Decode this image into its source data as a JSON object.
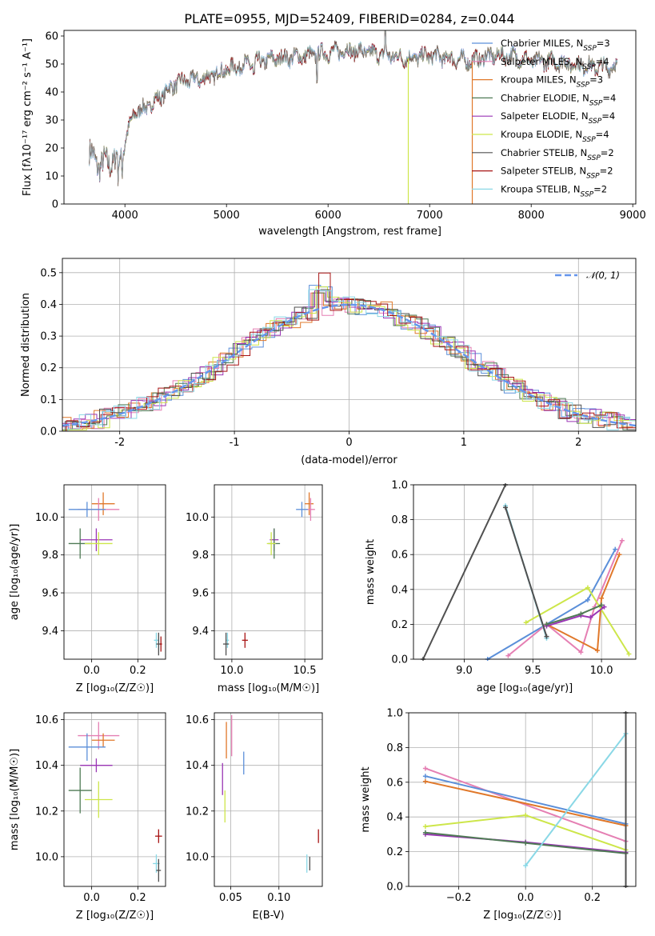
{
  "title": "PLATE=0955, MJD=52409, FIBERID=0284, z=0.044",
  "colors": {
    "chabrier_miles": "#5b8fd9",
    "salpeter_miles": "#e57fb3",
    "kroupa_miles": "#e0782a",
    "chabrier_elodie": "#4f7a55",
    "salpeter_elodie": "#9a35b5",
    "kroupa_elodie": "#cde64a",
    "chabrier_stelib": "#505050",
    "salpeter_stelib": "#a81414",
    "kroupa_stelib": "#8ad8e6",
    "data": "#7f7f7f",
    "normal": "#6495ed",
    "grid": "#b0b0b0"
  },
  "chart_data": [
    {
      "id": "spectrum",
      "type": "line",
      "xlabel": "wavelength [Angstrom, rest frame]",
      "ylabel": "Flux [fλ10⁻¹⁷ erg cm⁻² s⁻¹ A⁻¹]",
      "xlim": [
        3400,
        9030
      ],
      "ylim": [
        0,
        62
      ],
      "xticks": [
        4000,
        5000,
        6000,
        7000,
        8000,
        9000
      ],
      "yticks": [
        0,
        10,
        20,
        30,
        40,
        50,
        60
      ],
      "grid": false,
      "legend_position": "upper right",
      "continuum": [
        [
          3650,
          18
        ],
        [
          3750,
          14
        ],
        [
          3850,
          15
        ],
        [
          3950,
          17
        ],
        [
          4000,
          23
        ],
        [
          4100,
          33
        ],
        [
          4200,
          34
        ],
        [
          4300,
          37
        ],
        [
          4400,
          40
        ],
        [
          4500,
          43
        ],
        [
          4600,
          44
        ],
        [
          4800,
          45
        ],
        [
          5000,
          48
        ],
        [
          5200,
          50
        ],
        [
          5500,
          52
        ],
        [
          5800,
          53
        ],
        [
          6000,
          54
        ],
        [
          6200,
          55
        ],
        [
          6400,
          54
        ],
        [
          6600,
          53
        ],
        [
          6800,
          52
        ],
        [
          7000,
          53
        ],
        [
          7200,
          52
        ],
        [
          7400,
          51
        ],
        [
          7600,
          53
        ],
        [
          7800,
          53
        ],
        [
          8000,
          51
        ],
        [
          8200,
          51
        ],
        [
          8400,
          50
        ],
        [
          8600,
          49
        ],
        [
          8800,
          49
        ]
      ],
      "dropouts": [
        {
          "x": 6790,
          "color": "kroupa_elodie"
        },
        {
          "x": 7420,
          "color": "kroupa_miles"
        }
      ],
      "series": [
        {
          "name": "Chabrier MILES, N",
          "sub": "SSP",
          "suffix": "=3",
          "color": "chabrier_miles"
        },
        {
          "name": "Salpeter MILES, N",
          "sub": "SSP",
          "suffix": "=4",
          "color": "salpeter_miles"
        },
        {
          "name": "Kroupa MILES, N",
          "sub": "SSP",
          "suffix": "=3",
          "color": "kroupa_miles"
        },
        {
          "name": "Chabrier ELODIE, N",
          "sub": "SSP",
          "suffix": "=4",
          "color": "chabrier_elodie"
        },
        {
          "name": "Salpeter ELODIE, N",
          "sub": "SSP",
          "suffix": "=4",
          "color": "salpeter_elodie"
        },
        {
          "name": "Kroupa ELODIE, N",
          "sub": "SSP",
          "suffix": "=4",
          "color": "kroupa_elodie"
        },
        {
          "name": "Chabrier STELIB, N",
          "sub": "SSP",
          "suffix": "=2",
          "color": "chabrier_stelib"
        },
        {
          "name": "Salpeter STELIB, N",
          "sub": "SSP",
          "suffix": "=2",
          "color": "salpeter_stelib"
        },
        {
          "name": "Kroupa STELIB, N",
          "sub": "SSP",
          "suffix": "=2",
          "color": "kroupa_stelib"
        }
      ]
    },
    {
      "id": "residuals",
      "type": "histogram",
      "xlabel": "(data-model)/error",
      "ylabel": "Normed distribution",
      "xlim": [
        -2.5,
        2.5
      ],
      "ylim": [
        0,
        0.545
      ],
      "xticks": [
        -2,
        -1,
        0,
        1,
        2
      ],
      "yticks": [
        0.0,
        0.1,
        0.2,
        0.3,
        0.4,
        0.5
      ],
      "grid": true,
      "legend_position": "upper right",
      "legend_label": "𝒩(0, 1)",
      "bin_width": 0.1,
      "bin_edges_start": -2.5,
      "series_colors": [
        "chabrier_miles",
        "salpeter_miles",
        "kroupa_miles",
        "chabrier_elodie",
        "salpeter_elodie",
        "kroupa_elodie",
        "chabrier_stelib",
        "salpeter_stelib",
        "kroupa_stelib"
      ]
    },
    {
      "id": "age_vs_Z",
      "type": "errorbar",
      "xlabel": "Z [log₁₀(Z/Z☉)]",
      "ylabel": "age  [log₁₀(age/yr)]",
      "xlim": [
        -0.12,
        0.32
      ],
      "ylim": [
        9.25,
        10.17
      ],
      "xticks": [
        0.0,
        0.2
      ],
      "xtick_labels": [
        "0.0",
        "0.2"
      ],
      "yticks": [
        9.4,
        9.6,
        9.8,
        10.0
      ],
      "grid": true,
      "points": [
        {
          "x": 0.05,
          "y": 10.07,
          "xerr": 0.05,
          "yerr": 0.06,
          "color": "kroupa_miles"
        },
        {
          "x": 0.03,
          "y": 10.04,
          "xerr": 0.09,
          "yerr": 0.06,
          "color": "salpeter_miles"
        },
        {
          "x": -0.02,
          "y": 10.04,
          "xerr": 0.08,
          "yerr": 0.04,
          "color": "chabrier_miles"
        },
        {
          "x": 0.02,
          "y": 9.88,
          "xerr": 0.07,
          "yerr": 0.06,
          "color": "salpeter_elodie"
        },
        {
          "x": -0.05,
          "y": 9.86,
          "xerr": 0.05,
          "yerr": 0.08,
          "color": "chabrier_elodie"
        },
        {
          "x": 0.03,
          "y": 9.86,
          "xerr": 0.06,
          "yerr": 0.06,
          "color": "kroupa_elodie"
        },
        {
          "x": 0.28,
          "y": 9.35,
          "xerr": 0.01,
          "yerr": 0.04,
          "color": "kroupa_stelib"
        },
        {
          "x": 0.29,
          "y": 9.33,
          "xerr": 0.01,
          "yerr": 0.06,
          "color": "chabrier_stelib"
        },
        {
          "x": 0.3,
          "y": 9.33,
          "xerr": 0.005,
          "yerr": 0.04,
          "color": "salpeter_stelib"
        }
      ]
    },
    {
      "id": "age_vs_mass",
      "type": "errorbar",
      "xlabel": "mass [log₁₀(M/M☉)]",
      "ylabel": "",
      "xlim": [
        9.88,
        10.62
      ],
      "ylim": [
        9.25,
        10.17
      ],
      "xticks": [
        10.0,
        10.5
      ],
      "xtick_labels": [
        "10.0",
        "10.5"
      ],
      "yticks": [
        9.4,
        9.6,
        9.8,
        10.0
      ],
      "grid": true,
      "points": [
        {
          "x": 10.53,
          "y": 10.07,
          "xerr": 0.03,
          "yerr": 0.06,
          "color": "kroupa_miles"
        },
        {
          "x": 10.54,
          "y": 10.04,
          "xerr": 0.03,
          "yerr": 0.06,
          "color": "salpeter_miles"
        },
        {
          "x": 10.48,
          "y": 10.04,
          "xerr": 0.04,
          "yerr": 0.04,
          "color": "chabrier_miles"
        },
        {
          "x": 10.29,
          "y": 9.88,
          "xerr": 0.03,
          "yerr": 0.06,
          "color": "salpeter_elodie"
        },
        {
          "x": 10.29,
          "y": 9.86,
          "xerr": 0.04,
          "yerr": 0.08,
          "color": "chabrier_elodie"
        },
        {
          "x": 10.27,
          "y": 9.86,
          "xerr": 0.03,
          "yerr": 0.06,
          "color": "kroupa_elodie"
        },
        {
          "x": 9.97,
          "y": 9.35,
          "xerr": 0.01,
          "yerr": 0.04,
          "color": "kroupa_stelib"
        },
        {
          "x": 9.96,
          "y": 9.33,
          "xerr": 0.02,
          "yerr": 0.06,
          "color": "chabrier_stelib"
        },
        {
          "x": 10.09,
          "y": 9.35,
          "xerr": 0.02,
          "yerr": 0.04,
          "color": "salpeter_stelib"
        }
      ]
    },
    {
      "id": "weight_vs_age",
      "type": "line",
      "xlabel": "age  [log₁₀(age/yr)]",
      "ylabel": "mass weight",
      "xlim": [
        8.63,
        10.25
      ],
      "ylim": [
        0,
        1.0
      ],
      "xticks": [
        9.0,
        9.5,
        10.0
      ],
      "xtick_labels": [
        "9.0",
        "9.5",
        "10.0"
      ],
      "yticks": [
        0.0,
        0.2,
        0.4,
        0.6,
        0.8,
        1.0
      ],
      "grid": true,
      "series": [
        {
          "color": "chabrier_stelib",
          "x": [
            8.7,
            9.3
          ],
          "y": [
            0.0,
            1.0
          ]
        },
        {
          "color": "chabrier_miles",
          "x": [
            9.17,
            9.9,
            10.1
          ],
          "y": [
            0.0,
            0.34,
            0.63
          ]
        },
        {
          "color": "salpeter_miles",
          "x": [
            9.32,
            9.6,
            9.85,
            9.95,
            10.15
          ],
          "y": [
            0.02,
            0.2,
            0.04,
            0.3,
            0.68
          ]
        },
        {
          "color": "kroupa_miles",
          "x": [
            9.6,
            9.97,
            10.0,
            10.13
          ],
          "y": [
            0.2,
            0.05,
            0.35,
            0.6
          ]
        },
        {
          "color": "kroupa_elodie",
          "x": [
            9.45,
            9.9,
            10.2
          ],
          "y": [
            0.21,
            0.41,
            0.03
          ]
        },
        {
          "color": "salpeter_elodie",
          "x": [
            9.6,
            9.85,
            9.92,
            10.02
          ],
          "y": [
            0.19,
            0.25,
            0.24,
            0.3
          ]
        },
        {
          "color": "chabrier_elodie",
          "x": [
            9.6,
            9.85,
            10.0
          ],
          "y": [
            0.2,
            0.26,
            0.31
          ]
        },
        {
          "color": "kroupa_stelib",
          "x": [
            9.3,
            9.6
          ],
          "y": [
            0.88,
            0.12
          ]
        },
        {
          "color": "chabrier_stelib",
          "x": [
            9.3,
            9.6
          ],
          "y": [
            0.87,
            0.13
          ]
        }
      ]
    },
    {
      "id": "mass_vs_Z",
      "type": "errorbar",
      "xlabel": "Z [log₁₀(Z/Z☉)]",
      "ylabel": "mass [log₁₀(M/M☉)]",
      "xlim": [
        -0.12,
        0.32
      ],
      "ylim": [
        9.87,
        10.63
      ],
      "xticks": [
        0.0,
        0.2
      ],
      "xtick_labels": [
        "0.0",
        "0.2"
      ],
      "yticks": [
        10.0,
        10.2,
        10.4,
        10.6
      ],
      "grid": true,
      "points": [
        {
          "x": 0.03,
          "y": 10.53,
          "xerr": 0.09,
          "yerr": 0.06,
          "color": "salpeter_miles"
        },
        {
          "x": 0.05,
          "y": 10.51,
          "xerr": 0.05,
          "yerr": 0.03,
          "color": "kroupa_miles"
        },
        {
          "x": -0.02,
          "y": 10.48,
          "xerr": 0.08,
          "yerr": 0.06,
          "color": "chabrier_miles"
        },
        {
          "x": 0.02,
          "y": 10.4,
          "xerr": 0.07,
          "yerr": 0.03,
          "color": "salpeter_elodie"
        },
        {
          "x": -0.05,
          "y": 10.29,
          "xerr": 0.05,
          "yerr": 0.1,
          "color": "chabrier_elodie"
        },
        {
          "x": 0.03,
          "y": 10.25,
          "xerr": 0.06,
          "yerr": 0.08,
          "color": "kroupa_elodie"
        },
        {
          "x": 0.28,
          "y": 9.97,
          "xerr": 0.015,
          "yerr": 0.04,
          "color": "kroupa_stelib"
        },
        {
          "x": 0.29,
          "y": 9.94,
          "xerr": 0.01,
          "yerr": 0.05,
          "color": "chabrier_stelib"
        },
        {
          "x": 0.29,
          "y": 10.09,
          "xerr": 0.015,
          "yerr": 0.03,
          "color": "salpeter_stelib"
        }
      ]
    },
    {
      "id": "mass_vs_ebv",
      "type": "errorbar",
      "xlabel": "E(B-V)",
      "ylabel": "",
      "xlim": [
        0.033,
        0.145
      ],
      "ylim": [
        9.87,
        10.63
      ],
      "xticks": [
        0.05,
        0.1
      ],
      "xtick_labels": [
        "0.05",
        "0.10"
      ],
      "yticks": [
        10.0,
        10.2,
        10.4,
        10.6
      ],
      "grid": true,
      "points": [
        {
          "x": 0.0455,
          "y": 10.51,
          "xerr": 0,
          "yerr": 0.08,
          "color": "kroupa_miles"
        },
        {
          "x": 0.051,
          "y": 10.53,
          "xerr": 0,
          "yerr": 0.09,
          "color": "salpeter_miles"
        },
        {
          "x": 0.0635,
          "y": 10.41,
          "xerr": 0,
          "yerr": 0.05,
          "color": "chabrier_miles"
        },
        {
          "x": 0.0415,
          "y": 10.34,
          "xerr": 0,
          "yerr": 0.07,
          "color": "salpeter_elodie"
        },
        {
          "x": 0.044,
          "y": 10.22,
          "xerr": 0,
          "yerr": 0.07,
          "color": "kroupa_elodie"
        },
        {
          "x": 0.129,
          "y": 9.97,
          "xerr": 0,
          "yerr": 0.04,
          "color": "kroupa_stelib"
        },
        {
          "x": 0.132,
          "y": 9.97,
          "xerr": 0,
          "yerr": 0.03,
          "color": "chabrier_stelib"
        },
        {
          "x": 0.141,
          "y": 10.09,
          "xerr": 0,
          "yerr": 0.03,
          "color": "salpeter_stelib"
        }
      ]
    },
    {
      "id": "weight_vs_Z",
      "type": "line",
      "xlabel": "Z [log₁₀(Z/Z☉)]",
      "ylabel": "mass weight",
      "xlim": [
        -0.35,
        0.33
      ],
      "ylim": [
        0,
        1.0
      ],
      "xticks": [
        -0.2,
        0.0,
        0.2
      ],
      "xtick_labels": [
        "−0.2",
        "0.0",
        "0.2"
      ],
      "yticks": [
        0.0,
        0.2,
        0.4,
        0.6,
        0.8,
        1.0
      ],
      "grid": true,
      "series": [
        {
          "color": "salpeter_miles",
          "x": [
            -0.3,
            0.3
          ],
          "y": [
            0.68,
            0.26
          ]
        },
        {
          "color": "chabrier_miles",
          "x": [
            -0.3,
            0.3
          ],
          "y": [
            0.635,
            0.36
          ]
        },
        {
          "color": "kroupa_miles",
          "x": [
            -0.3,
            0.3
          ],
          "y": [
            0.605,
            0.35
          ]
        },
        {
          "color": "kroupa_elodie",
          "x": [
            -0.3,
            0.0,
            0.3
          ],
          "y": [
            0.345,
            0.41,
            0.21
          ]
        },
        {
          "color": "salpeter_elodie",
          "x": [
            -0.3,
            0.0,
            0.3
          ],
          "y": [
            0.3,
            0.255,
            0.195
          ]
        },
        {
          "color": "chabrier_elodie",
          "x": [
            -0.3,
            0.0,
            0.3
          ],
          "y": [
            0.31,
            0.25,
            0.19
          ]
        },
        {
          "color": "kroupa_stelib",
          "x": [
            0.0,
            0.3
          ],
          "y": [
            0.12,
            0.88
          ]
        },
        {
          "color": "chabrier_stelib",
          "x": [
            0.3,
            0.3
          ],
          "y": [
            0.0,
            1.0
          ]
        }
      ]
    }
  ]
}
